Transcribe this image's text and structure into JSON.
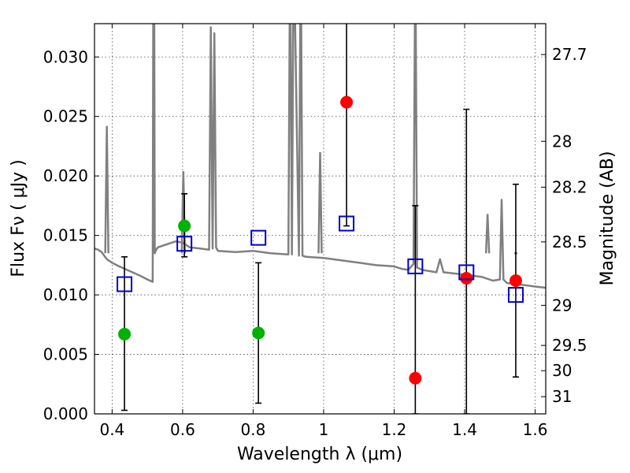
{
  "chart_data": {
    "type": "scatter",
    "title": "",
    "xlabel": "Wavelength  λ (μm)",
    "ylabel": "Flux  Fν  ( μJy )",
    "y2label": "Magnitude (AB)",
    "xlim": [
      0.35,
      1.63
    ],
    "ylim": [
      0.0,
      0.0328
    ],
    "x_ticks": [
      {
        "value": 0.4,
        "label": "0.4"
      },
      {
        "value": 0.6,
        "label": "0.6"
      },
      {
        "value": 0.8,
        "label": "0.8"
      },
      {
        "value": 1.0,
        "label": "1"
      },
      {
        "value": 1.2,
        "label": "1.2"
      },
      {
        "value": 1.4,
        "label": "1.4"
      },
      {
        "value": 1.6,
        "label": "1.6"
      }
    ],
    "y_ticks": [
      {
        "value": 0.0,
        "label": "0.000"
      },
      {
        "value": 0.005,
        "label": "0.005"
      },
      {
        "value": 0.01,
        "label": "0.010"
      },
      {
        "value": 0.015,
        "label": "0.015"
      },
      {
        "value": 0.02,
        "label": "0.020"
      },
      {
        "value": 0.025,
        "label": "0.025"
      },
      {
        "value": 0.03,
        "label": "0.030"
      }
    ],
    "y2_ticks": [
      {
        "value": 27.7,
        "label": "27.7"
      },
      {
        "value": 28.0,
        "label": "28"
      },
      {
        "value": 28.2,
        "label": "28.2"
      },
      {
        "value": 28.5,
        "label": "28.5"
      },
      {
        "value": 29.0,
        "label": "29"
      },
      {
        "value": 29.5,
        "label": "29.5"
      },
      {
        "value": 30.0,
        "label": "30"
      },
      {
        "value": 31.0,
        "label": "31"
      }
    ],
    "grid": true,
    "colors": {
      "model": "#808080",
      "green": "#00b200",
      "red": "#ff0000",
      "squares": "#0000cc",
      "errorbar": "#000000"
    },
    "model_spectrum": {
      "x": [
        0.35,
        0.36,
        0.37,
        0.38,
        0.385,
        0.39,
        0.395,
        0.4,
        0.42,
        0.45,
        0.48,
        0.5,
        0.515,
        0.517,
        0.519,
        0.521,
        0.525,
        0.53,
        0.55,
        0.58,
        0.6,
        0.62,
        0.65,
        0.675,
        0.68,
        0.685,
        0.69,
        0.695,
        0.7,
        0.75,
        0.8,
        0.85,
        0.9,
        0.905,
        0.91,
        0.915,
        0.93,
        0.935,
        0.94,
        0.95,
        1.0,
        1.05,
        1.1,
        1.15,
        1.2,
        1.22,
        1.24,
        1.255,
        1.26,
        1.265,
        1.28,
        1.32,
        1.33,
        1.34,
        1.4,
        1.45,
        1.48,
        1.5,
        1.505,
        1.51,
        1.52,
        1.55,
        1.6,
        1.63
      ],
      "y": [
        0.0139,
        0.0138,
        0.0136,
        0.0132,
        0.013,
        0.0129,
        0.0128,
        0.0127,
        0.0124,
        0.012,
        0.0116,
        0.0113,
        0.0111,
        0.04,
        0.04,
        0.0135,
        0.0138,
        0.014,
        0.0142,
        0.0145,
        0.0144,
        0.014,
        0.0139,
        0.0138,
        0.0325,
        0.0139,
        0.032,
        0.014,
        0.0137,
        0.0136,
        0.0137,
        0.0135,
        0.0134,
        0.04,
        0.0134,
        0.04,
        0.0133,
        0.04,
        0.0133,
        0.0132,
        0.0131,
        0.0129,
        0.0127,
        0.0125,
        0.0124,
        0.0122,
        0.0121,
        0.0126,
        0.04,
        0.0123,
        0.0121,
        0.0119,
        0.013,
        0.0119,
        0.0117,
        0.0115,
        0.0112,
        0.0113,
        0.018,
        0.0113,
        0.011,
        0.0109,
        0.0107,
        0.0106
      ]
    },
    "model_emission_lines": [
      {
        "x": 0.385,
        "peak": 0.0242
      },
      {
        "x": 0.602,
        "peak": 0.0204
      },
      {
        "x": 0.99,
        "peak": 0.022
      },
      {
        "x": 1.465,
        "peak": 0.0168
      },
      {
        "x": 1.545,
        "peak": 0.0135
      }
    ],
    "series": [
      {
        "marker": "green-circle",
        "points": [
          {
            "x": 0.435,
            "y": 0.0067,
            "yerr_low": 0.0003,
            "yerr_high": 0.0132
          },
          {
            "x": 0.605,
            "y": 0.0158,
            "yerr_low": 0.0132,
            "yerr_high": 0.0185
          },
          {
            "x": 0.815,
            "y": 0.0068,
            "yerr_low": 0.0009,
            "yerr_high": 0.0127
          }
        ]
      },
      {
        "marker": "red-circle",
        "points": [
          {
            "x": 1.065,
            "y": 0.0262,
            "yerr_low": 0.0158,
            "yerr_high": 0.034
          },
          {
            "x": 1.26,
            "y": 0.003,
            "yerr_low": 0.0,
            "yerr_high": 0.0175
          },
          {
            "x": 1.405,
            "y": 0.0114,
            "yerr_low": 0.0,
            "yerr_high": 0.0256
          },
          {
            "x": 1.545,
            "y": 0.0112,
            "yerr_low": 0.0031,
            "yerr_high": 0.0193
          }
        ]
      },
      {
        "marker": "blue-open-square",
        "points": [
          {
            "x": 0.435,
            "y": 0.0109
          },
          {
            "x": 0.605,
            "y": 0.0143
          },
          {
            "x": 0.815,
            "y": 0.0148
          },
          {
            "x": 1.065,
            "y": 0.016
          },
          {
            "x": 1.26,
            "y": 0.0124
          },
          {
            "x": 1.405,
            "y": 0.0119
          },
          {
            "x": 1.545,
            "y": 0.01
          }
        ]
      }
    ]
  }
}
